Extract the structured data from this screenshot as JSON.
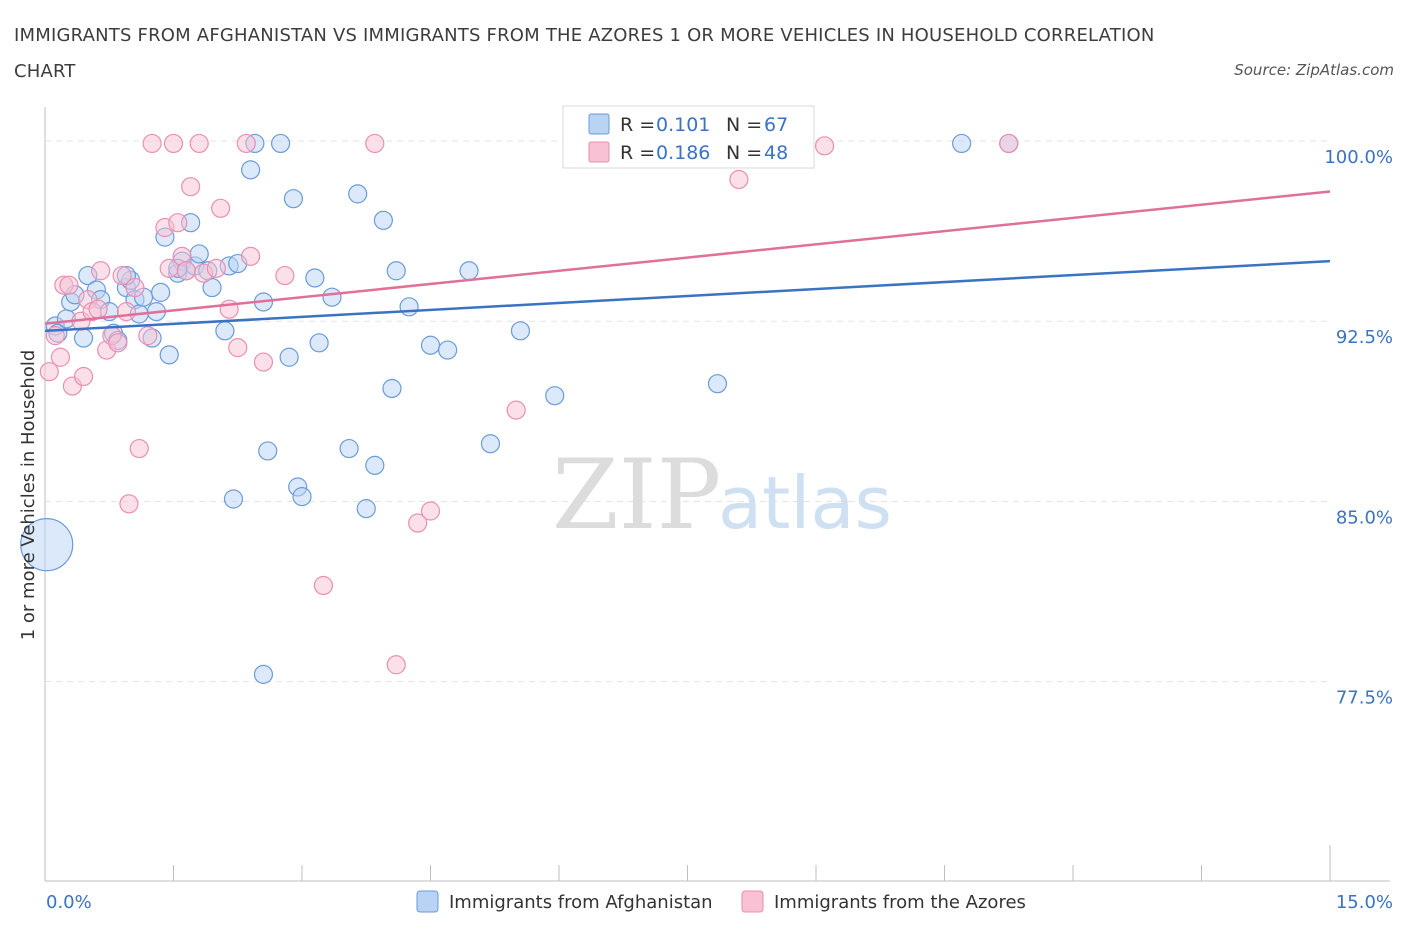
{
  "title": "IMMIGRANTS FROM AFGHANISTAN VS IMMIGRANTS FROM THE AZORES 1 OR MORE VEHICLES IN HOUSEHOLD CORRELATION CHART",
  "source": "Source: ZipAtlas.com",
  "watermark": {
    "zip": "ZIP",
    "atlas": "atlas"
  },
  "colors": {
    "blue": "#3a73c4",
    "blue_fill": "#b9d3f5",
    "blue_stroke": "#6b9bd8",
    "pink": "#e0709a",
    "pink_fill": "#f8c2d4",
    "pink_stroke": "#ea8fb1",
    "grid": "#e3e3e3"
  },
  "legend": {
    "r_label": "R =",
    "n_label": "N =",
    "rows": [
      {
        "r": "0.101",
        "n": "67"
      },
      {
        "r": "0.186",
        "n": "48"
      }
    ]
  },
  "chart_data": {
    "type": "scatter",
    "xlabel": "",
    "ylabel": "1 or more Vehicles in Household",
    "xlim": [
      0,
      15
    ],
    "ylim": [
      69.2,
      101.0
    ],
    "x_tick_labels": [
      "0.0%",
      "15.0%"
    ],
    "y_ticks": [
      77.5,
      85.0,
      92.5,
      100.0
    ],
    "y_tick_labels": [
      "77.5%",
      "85.0%",
      "92.5%",
      "100.0%"
    ],
    "grid": true,
    "legend_position": "top-center",
    "series": [
      {
        "name": "Immigrants from Afghanistan",
        "color": "blue",
        "trend": {
          "x": [
            0,
            15
          ],
          "y": [
            92.1,
            95.0
          ]
        },
        "points": [
          [
            0.12,
            92.3
          ],
          [
            0.15,
            92.0
          ],
          [
            0.25,
            92.6
          ],
          [
            0.3,
            93.3
          ],
          [
            0.35,
            93.6
          ],
          [
            0.45,
            91.8
          ],
          [
            0.5,
            94.4
          ],
          [
            0.6,
            93.8
          ],
          [
            0.65,
            93.4
          ],
          [
            0.75,
            92.9
          ],
          [
            0.8,
            92.0
          ],
          [
            0.85,
            91.7
          ],
          [
            0.95,
            93.9
          ],
          [
            1.0,
            94.2
          ],
          [
            1.05,
            93.4
          ],
          [
            1.1,
            92.8
          ],
          [
            1.15,
            93.5
          ],
          [
            1.25,
            91.8
          ],
          [
            1.3,
            92.9
          ],
          [
            1.35,
            93.7
          ],
          [
            1.4,
            96.0
          ],
          [
            1.45,
            91.1
          ],
          [
            1.55,
            94.5
          ],
          [
            1.6,
            95.0
          ],
          [
            1.65,
            94.6
          ],
          [
            1.7,
            96.6
          ],
          [
            1.75,
            94.8
          ],
          [
            1.8,
            95.3
          ],
          [
            1.9,
            94.6
          ],
          [
            1.95,
            93.9
          ],
          [
            2.1,
            92.1
          ],
          [
            2.15,
            94.8
          ],
          [
            2.2,
            85.1
          ],
          [
            2.25,
            94.9
          ],
          [
            2.45,
            99.9
          ],
          [
            2.55,
            93.3
          ],
          [
            2.6,
            87.1
          ],
          [
            2.75,
            99.9
          ],
          [
            2.85,
            91.0
          ],
          [
            2.9,
            97.6
          ],
          [
            2.95,
            85.6
          ],
          [
            3.0,
            85.2
          ],
          [
            3.15,
            94.3
          ],
          [
            3.2,
            91.6
          ],
          [
            3.35,
            93.5
          ],
          [
            3.55,
            87.2
          ],
          [
            3.65,
            97.8
          ],
          [
            3.75,
            84.7
          ],
          [
            3.85,
            86.5
          ],
          [
            3.95,
            96.7
          ],
          [
            4.05,
            89.7
          ],
          [
            4.1,
            94.6
          ],
          [
            4.25,
            93.1
          ],
          [
            4.5,
            91.5
          ],
          [
            4.7,
            91.3
          ],
          [
            4.95,
            94.6
          ],
          [
            5.2,
            87.4
          ],
          [
            5.55,
            92.1
          ],
          [
            5.95,
            89.4
          ],
          [
            7.85,
            89.9
          ],
          [
            10.7,
            99.9
          ],
          [
            11.25,
            99.9
          ],
          [
            2.4,
            98.8
          ],
          [
            2.55,
            77.8
          ],
          [
            0.95,
            94.4
          ],
          [
            1.55,
            94.7
          ],
          [
            0.02,
            83.2
          ]
        ],
        "sizes": {
          "0.02,83.2": "large"
        }
      },
      {
        "name": "Immigrants from the Azores",
        "color": "pink",
        "trend": {
          "x": [
            0,
            15
          ],
          "y": [
            92.4,
            97.9
          ]
        },
        "points": [
          [
            0.05,
            90.4
          ],
          [
            0.12,
            91.9
          ],
          [
            0.18,
            91.0
          ],
          [
            0.22,
            94.0
          ],
          [
            0.28,
            94.0
          ],
          [
            0.32,
            89.8
          ],
          [
            0.42,
            92.5
          ],
          [
            0.45,
            90.2
          ],
          [
            0.5,
            93.4
          ],
          [
            0.55,
            92.9
          ],
          [
            0.62,
            93.0
          ],
          [
            0.65,
            94.6
          ],
          [
            0.72,
            91.3
          ],
          [
            0.78,
            91.9
          ],
          [
            0.85,
            91.6
          ],
          [
            0.9,
            94.4
          ],
          [
            0.95,
            92.9
          ],
          [
            0.98,
            84.9
          ],
          [
            1.05,
            93.9
          ],
          [
            1.1,
            87.2
          ],
          [
            1.2,
            91.9
          ],
          [
            1.25,
            99.9
          ],
          [
            1.4,
            96.4
          ],
          [
            1.45,
            94.7
          ],
          [
            1.5,
            99.9
          ],
          [
            1.55,
            96.6
          ],
          [
            1.6,
            95.2
          ],
          [
            1.65,
            94.6
          ],
          [
            1.7,
            98.1
          ],
          [
            1.8,
            99.9
          ],
          [
            1.85,
            94.5
          ],
          [
            2.0,
            94.7
          ],
          [
            2.05,
            97.2
          ],
          [
            2.15,
            93.0
          ],
          [
            2.25,
            91.4
          ],
          [
            2.35,
            99.9
          ],
          [
            2.4,
            95.2
          ],
          [
            2.55,
            90.8
          ],
          [
            2.8,
            94.4
          ],
          [
            3.25,
            81.5
          ],
          [
            3.85,
            99.9
          ],
          [
            4.1,
            78.2
          ],
          [
            4.35,
            84.1
          ],
          [
            4.5,
            84.6
          ],
          [
            5.5,
            88.8
          ],
          [
            8.1,
            98.4
          ],
          [
            9.1,
            99.8
          ],
          [
            11.25,
            99.9
          ]
        ]
      }
    ]
  }
}
